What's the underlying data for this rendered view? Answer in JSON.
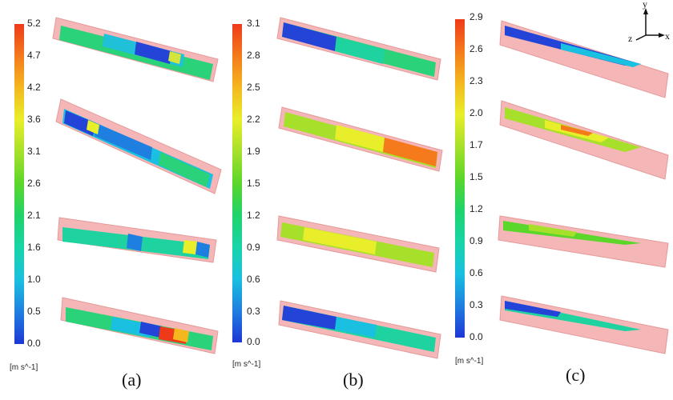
{
  "colorbars": [
    {
      "id": "a",
      "ticks": [
        "5.2",
        "4.7",
        "4.2",
        "3.6",
        "3.1",
        "2.6",
        "2.1",
        "1.6",
        "1.0",
        "0.5",
        "0.0"
      ],
      "unit": "[m s^-1]"
    },
    {
      "id": "b",
      "ticks": [
        "3.1",
        "2.8",
        "2.5",
        "2.2",
        "1.9",
        "1.5",
        "1.2",
        "0.9",
        "0.6",
        "0.3",
        "0.0"
      ],
      "unit": "[m s^-1]"
    },
    {
      "id": "c",
      "ticks": [
        "2.9",
        "2.6",
        "2.3",
        "2.0",
        "1.7",
        "1.5",
        "1.2",
        "0.9",
        "0.6",
        "0.3",
        "0.0"
      ],
      "unit": "[m s^-1]"
    }
  ],
  "panels": [
    {
      "label": "(a)"
    },
    {
      "label": "(b)"
    },
    {
      "label": "(c)"
    }
  ],
  "axes": {
    "y": "y",
    "x": "x",
    "z": "z"
  },
  "colors": {
    "pipe": "#f4b6b6",
    "pipe_edge": "#e59a9a",
    "scale": [
      "#1d37d6",
      "#1f7fe0",
      "#19c0e0",
      "#17d5a8",
      "#1fd36a",
      "#5bd62b",
      "#a6e02a",
      "#e8ee2a",
      "#f4b81e",
      "#f47a1c",
      "#ef3a1a"
    ]
  }
}
